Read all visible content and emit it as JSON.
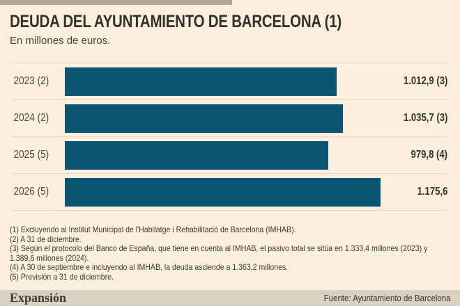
{
  "header": {
    "title": "DEUDA DEL AYUNTAMIENTO DE BARCELONA (1)",
    "subtitle": "En millones de euros."
  },
  "chart_data": {
    "type": "bar",
    "orientation": "horizontal",
    "title": "DEUDA DEL AYUNTAMIENTO DE BARCELONA (1)",
    "unit_label": "En millones de euros.",
    "categories": [
      "2023 (2)",
      "2024 (2)",
      "2025 (5)",
      "2026 (5)"
    ],
    "values": [
      1012.9,
      1035.7,
      979.8,
      1175.6
    ],
    "value_labels": [
      "1.012,9 (3)",
      "1.035,7 (3)",
      "979,8 (4)",
      "1.175,6"
    ],
    "xlabel": "",
    "ylabel": "",
    "xlim": [
      0,
      1175.6
    ],
    "grid": false,
    "legend": false,
    "bar_color": "#0a5574"
  },
  "footnotes": [
    "(1) Excluyendo al Institut Municipal de l'Habitatge i Rehabilitació de Barcelona (IMHAB).",
    "(2) A 31 de diciembre.",
    "(3) Según el protocolo del Banco de España, que tiene en cuenta al IMHAB, el pasivo total se sitúa en 1.333,4 millones (2023) y 1.389,6 millones (2024).",
    "(4) A 30 de septiembre e incluyendo al IMHAB, la deuda asciende a 1.363,2 millones.",
    "(5) Previsión a 31 de diciembre."
  ],
  "footer": {
    "logo": "Expansión",
    "source": "Fuente: Ayuntamiento de Barcelona"
  },
  "colors": {
    "background": "#fcefdc",
    "accent_bar": "#b5a492",
    "bar": "#0a5574",
    "separator": "#ded8c8",
    "footer_background": "#d8d2c3"
  }
}
